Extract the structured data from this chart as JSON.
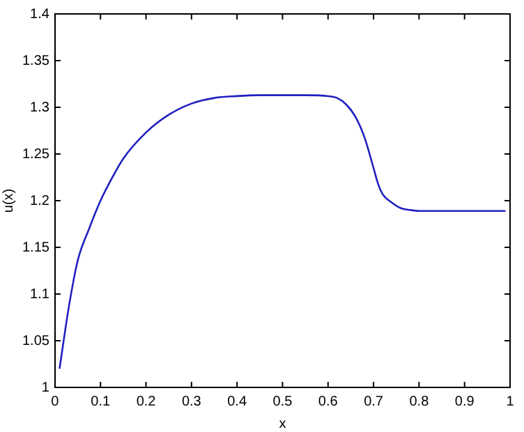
{
  "chart_data": {
    "type": "line",
    "xlabel": "x",
    "ylabel": "u(x)",
    "series": [
      {
        "color": "#2020c0",
        "x": [
          0.01,
          0.03,
          0.05,
          0.075,
          0.1,
          0.125,
          0.15,
          0.2,
          0.25,
          0.3,
          0.35,
          0.4,
          0.45,
          0.5,
          0.55,
          0.6,
          0.62,
          0.64,
          0.66,
          0.68,
          0.7,
          0.71,
          0.72,
          0.74,
          0.76,
          0.78,
          0.8,
          0.85,
          0.9,
          0.95,
          0.99
        ],
        "values": [
          1.02,
          1.085,
          1.136,
          1.17,
          1.2,
          1.224,
          1.245,
          1.273,
          1.292,
          1.304,
          1.31,
          1.312,
          1.313,
          1.313,
          1.313,
          1.312,
          1.31,
          1.303,
          1.29,
          1.268,
          1.235,
          1.218,
          1.207,
          1.198,
          1.192,
          1.19,
          1.189,
          1.189,
          1.189,
          1.189,
          1.189
        ]
      }
    ],
    "xlim": [
      0,
      1
    ],
    "xticks": [
      0,
      0.1,
      0.2,
      0.3,
      0.4,
      0.5,
      0.6,
      0.7,
      0.8,
      0.9,
      1
    ],
    "ylim": [
      1,
      1.4
    ],
    "yticks": [
      1,
      1.05,
      1.1,
      1.15,
      1.2,
      1.25,
      1.3,
      1.35,
      1.4
    ],
    "grid": false,
    "legend": false,
    "marker": "none",
    "line_style": "solid"
  }
}
